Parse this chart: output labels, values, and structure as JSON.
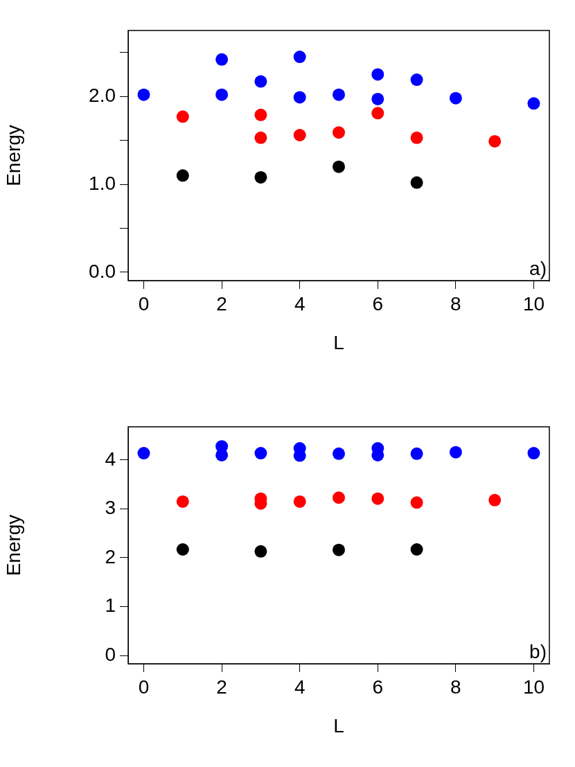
{
  "chart_data": [
    {
      "type": "scatter",
      "xlabel": "L",
      "ylabel": "Energy",
      "annotations": [
        "a)"
      ],
      "xlim": [
        -0.4,
        10.4
      ],
      "ylim": [
        -0.095,
        2.75
      ],
      "xticks": [
        0,
        2,
        4,
        6,
        8,
        10
      ],
      "yticks": [
        {
          "value": 0,
          "label": "0.0"
        },
        {
          "value": 0.5,
          "label": null
        },
        {
          "value": 1,
          "label": "1.0"
        },
        {
          "value": 1.5,
          "label": null
        },
        {
          "value": 2,
          "label": "2.0"
        },
        {
          "value": 2.5,
          "label": null
        }
      ],
      "grid": false,
      "legend": false,
      "marker": "circle",
      "series": [
        {
          "color": "#0000ff",
          "x": [
            0,
            2,
            2,
            3,
            4,
            4,
            5,
            6,
            6,
            7,
            8,
            10
          ],
          "values": [
            2.02,
            2.42,
            2.02,
            2.17,
            2.45,
            1.99,
            2.02,
            2.25,
            1.97,
            2.19,
            1.98,
            1.92
          ]
        },
        {
          "color": "#ff0000",
          "x": [
            1,
            3,
            3,
            4,
            5,
            6,
            7,
            9
          ],
          "values": [
            1.77,
            1.79,
            1.53,
            1.56,
            1.59,
            1.81,
            1.53,
            1.49
          ]
        },
        {
          "color": "#000000",
          "x": [
            1,
            3,
            5,
            7
          ],
          "values": [
            1.1,
            1.08,
            1.2,
            1.02
          ]
        }
      ]
    },
    {
      "type": "scatter",
      "xlabel": "L",
      "ylabel": "Energy",
      "annotations": [
        "b)"
      ],
      "xlim": [
        -0.4,
        10.4
      ],
      "ylim": [
        -0.17,
        4.68
      ],
      "xticks": [
        0,
        2,
        4,
        6,
        8,
        10
      ],
      "yticks": [
        0,
        1,
        2,
        3,
        4
      ],
      "grid": false,
      "legend": false,
      "marker": "circle",
      "series": [
        {
          "color": "#0000ff",
          "x": [
            0,
            2,
            2,
            3,
            4,
            4,
            5,
            6,
            6,
            7,
            8,
            10
          ],
          "values": [
            4.14,
            4.28,
            4.1,
            4.14,
            4.24,
            4.09,
            4.13,
            4.24,
            4.1,
            4.13,
            4.16,
            4.14
          ]
        },
        {
          "color": "#ff0000",
          "x": [
            1,
            3,
            3,
            4,
            5,
            6,
            7,
            9
          ],
          "values": [
            3.15,
            3.21,
            3.11,
            3.15,
            3.23,
            3.21,
            3.13,
            3.18
          ]
        },
        {
          "color": "#000000",
          "x": [
            1,
            3,
            5,
            7
          ],
          "values": [
            2.17,
            2.13,
            2.16,
            2.17
          ]
        }
      ]
    }
  ]
}
